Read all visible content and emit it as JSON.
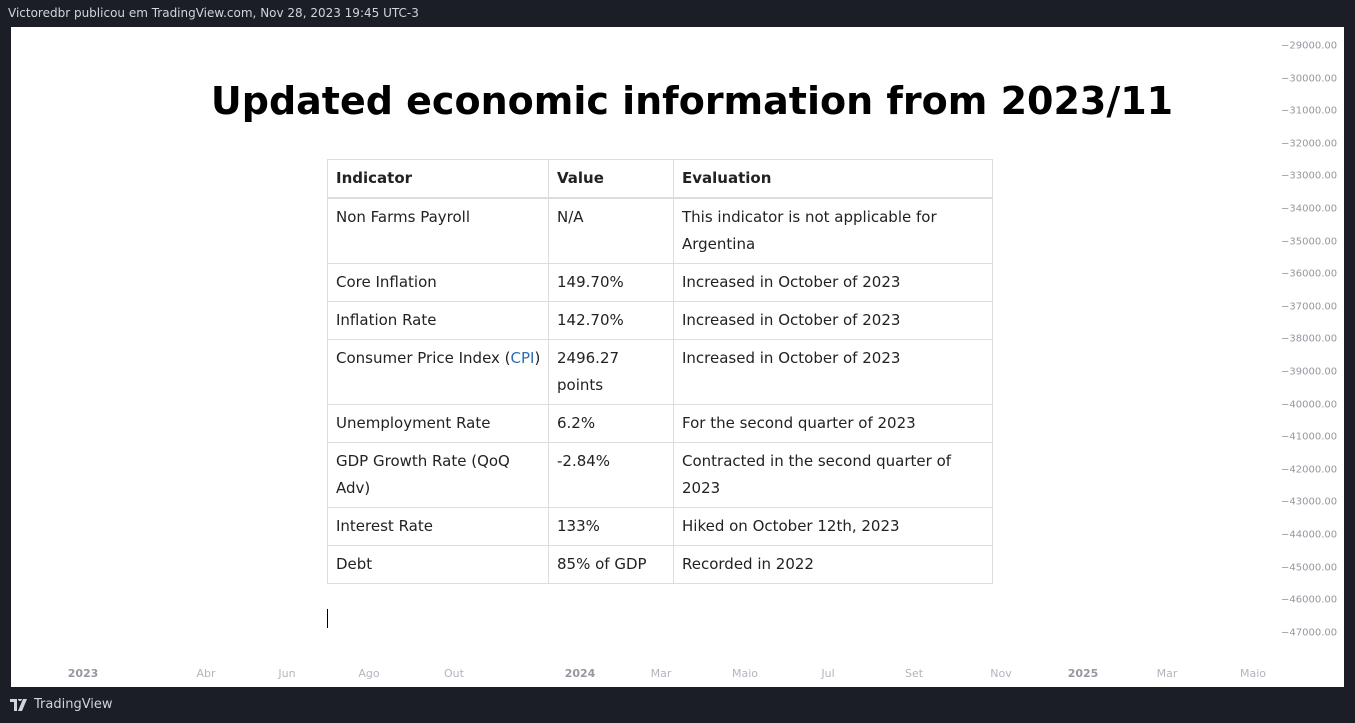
{
  "header": {
    "text": "Victoredbr publicou em TradingView.com, Nov 28, 2023 19:45 UTC-3"
  },
  "title": "Updated economic information from 2023/11",
  "table": {
    "columns": [
      "Indicator",
      "Value",
      "Evaluation"
    ],
    "rows": [
      [
        "Non Farms Payroll",
        "N/A",
        "This indicator is not applicable for Argentina"
      ],
      [
        "Core Inflation",
        "149.70%",
        "Increased in October of 2023"
      ],
      [
        "Inflation Rate",
        "142.70%",
        "Increased in October of 2023"
      ],
      [
        {
          "before": "Consumer Price Index (",
          "link": "CPI",
          "after": ")"
        },
        "2496.27 points",
        "Increased in October of 2023"
      ],
      [
        "Unemployment Rate",
        "6.2%",
        "For the second quarter of 2023"
      ],
      [
        "GDP Growth Rate (QoQ Adv)",
        "-2.84%",
        "Contracted in the second quarter of 2023"
      ],
      [
        "Interest Rate",
        "133%",
        "Hiked on October 12th, 2023"
      ],
      [
        "Debt",
        "85% of GDP",
        "Recorded in 2022"
      ]
    ]
  },
  "price_axis": [
    "−29000.00",
    "−30000.00",
    "−31000.00",
    "−32000.00",
    "−33000.00",
    "−34000.00",
    "−35000.00",
    "−36000.00",
    "−37000.00",
    "−38000.00",
    "−39000.00",
    "−40000.00",
    "−41000.00",
    "−42000.00",
    "−43000.00",
    "−44000.00",
    "−45000.00",
    "−46000.00",
    "−47000.00"
  ],
  "time_axis": [
    "2023",
    "Abr",
    "Jun",
    "Ago",
    "Out",
    "2024",
    "Mar",
    "Maio",
    "Jul",
    "Set",
    "Nov",
    "2025",
    "Mar",
    "Maio"
  ],
  "footer": {
    "brand": "TradingView"
  }
}
